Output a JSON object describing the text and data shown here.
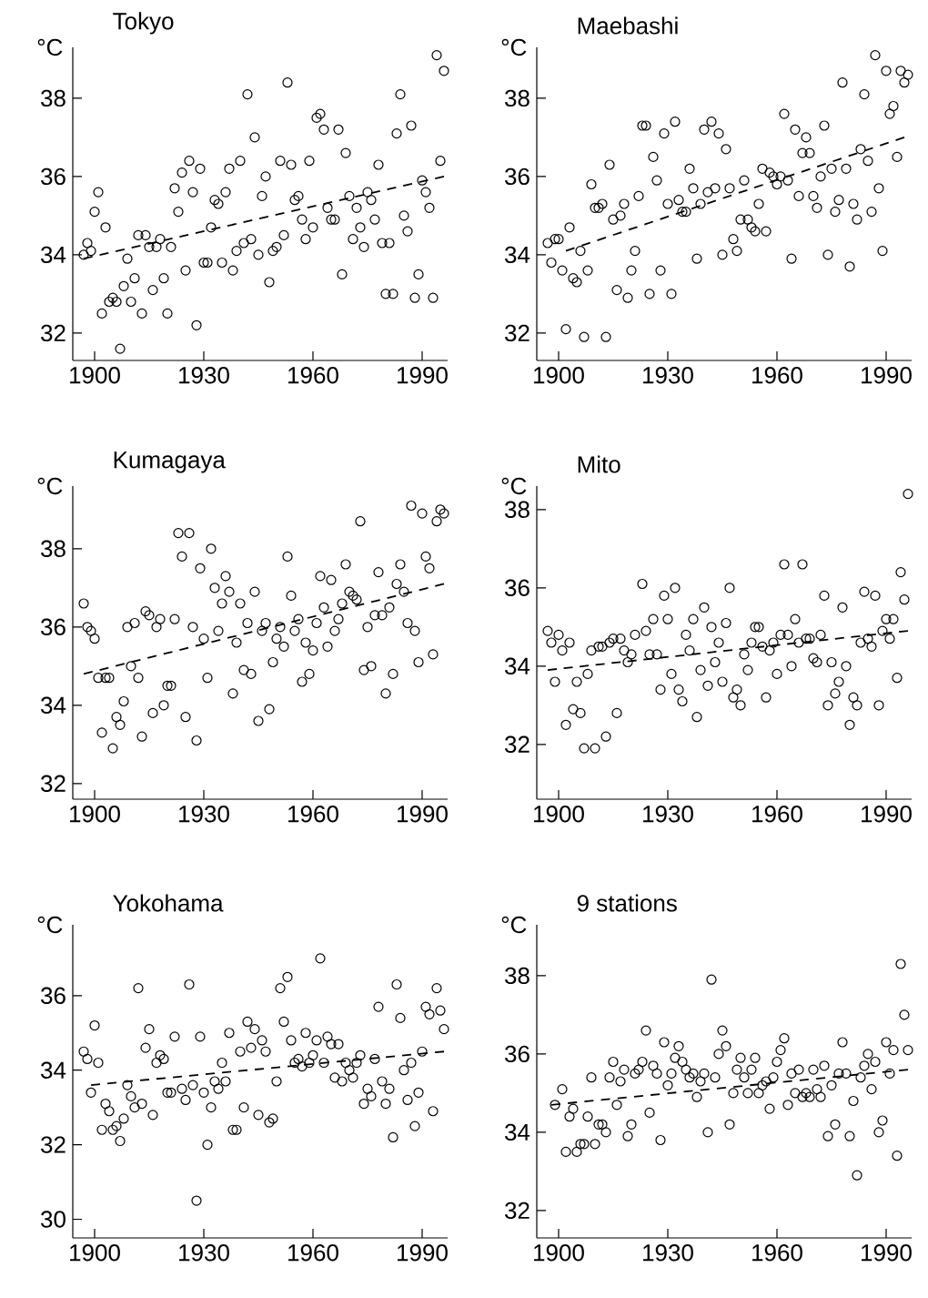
{
  "chart_data": [
    {
      "type": "scatter",
      "title": "Tokyo",
      "ylabel": "°C",
      "xlim": [
        1894,
        1997
      ],
      "ylim": [
        31.3,
        39.3
      ],
      "xticks": [
        1900,
        1930,
        1960,
        1990
      ],
      "yticks": [
        32,
        34,
        36,
        38
      ],
      "series": [
        {
          "type": "scatter",
          "color": "#000000",
          "marker": "circle",
          "x": [
            1897,
            1898,
            1899,
            1900,
            1901,
            1902,
            1903,
            1904,
            1905,
            1906,
            1907,
            1908,
            1909,
            1910,
            1911,
            1912,
            1913,
            1914,
            1915,
            1916,
            1917,
            1918,
            1919,
            1920,
            1921,
            1922,
            1923,
            1924,
            1925,
            1926,
            1927,
            1928,
            1929,
            1930,
            1931,
            1932,
            1933,
            1934,
            1935,
            1936,
            1937,
            1938,
            1939,
            1940,
            1941,
            1942,
            1943,
            1944,
            1945,
            1946,
            1947,
            1948,
            1949,
            1950,
            1951,
            1952,
            1953,
            1954,
            1955,
            1956,
            1957,
            1958,
            1959,
            1960,
            1961,
            1962,
            1963,
            1964,
            1965,
            1966,
            1967,
            1968,
            1969,
            1970,
            1971,
            1972,
            1973,
            1974,
            1975,
            1976,
            1977,
            1978,
            1979,
            1980,
            1981,
            1982,
            1983,
            1984,
            1985,
            1986,
            1987,
            1988,
            1989,
            1990,
            1991,
            1992,
            1993,
            1994,
            1995,
            1996
          ],
          "values": [
            34.0,
            34.3,
            34.1,
            35.1,
            35.6,
            32.5,
            34.7,
            32.8,
            32.9,
            32.8,
            31.6,
            33.2,
            33.9,
            32.8,
            33.4,
            34.5,
            32.5,
            34.5,
            34.2,
            33.1,
            34.2,
            34.4,
            33.4,
            32.5,
            34.2,
            35.7,
            35.1,
            36.1,
            33.6,
            36.4,
            35.6,
            32.2,
            36.2,
            33.8,
            33.8,
            34.7,
            35.4,
            35.3,
            33.8,
            35.6,
            36.2,
            33.6,
            34.1,
            36.4,
            34.3,
            38.1,
            34.4,
            37.0,
            34.0,
            35.5,
            36.0,
            33.3,
            34.1,
            34.2,
            36.4,
            34.5,
            38.4,
            36.3,
            35.4,
            35.5,
            34.9,
            34.4,
            36.4,
            34.7,
            37.5,
            37.6,
            37.2,
            35.2,
            34.9,
            34.9,
            37.2,
            33.5,
            36.6,
            35.5,
            34.4,
            35.2,
            34.7,
            34.2,
            35.6,
            35.4,
            34.9,
            36.3,
            34.3,
            33.0,
            34.3,
            33.0,
            37.1,
            38.1,
            35.0,
            34.6,
            37.3,
            32.9,
            33.5,
            35.9,
            35.6,
            35.2,
            32.9,
            39.1,
            36.4,
            38.7
          ]
        },
        {
          "type": "line",
          "color": "#000000",
          "line_style": "dashed",
          "x": [
            1897,
            1996
          ],
          "values": [
            33.9,
            36.0
          ]
        }
      ]
    },
    {
      "type": "scatter",
      "title": "Maebashi",
      "ylabel": "°C",
      "xlim": [
        1894,
        1997
      ],
      "ylim": [
        31.3,
        39.3
      ],
      "xticks": [
        1900,
        1930,
        1960,
        1990
      ],
      "yticks": [
        32,
        34,
        36,
        38
      ],
      "series": [
        {
          "type": "scatter",
          "color": "#000000",
          "marker": "circle",
          "x": [
            1897,
            1898,
            1899,
            1900,
            1901,
            1902,
            1903,
            1904,
            1905,
            1906,
            1907,
            1908,
            1909,
            1910,
            1911,
            1912,
            1913,
            1914,
            1915,
            1916,
            1917,
            1918,
            1919,
            1920,
            1921,
            1922,
            1923,
            1924,
            1925,
            1926,
            1927,
            1928,
            1929,
            1930,
            1931,
            1932,
            1933,
            1934,
            1935,
            1936,
            1937,
            1938,
            1939,
            1940,
            1941,
            1942,
            1943,
            1944,
            1945,
            1946,
            1947,
            1948,
            1949,
            1950,
            1951,
            1952,
            1953,
            1954,
            1955,
            1956,
            1957,
            1958,
            1959,
            1960,
            1961,
            1962,
            1963,
            1964,
            1965,
            1966,
            1967,
            1968,
            1969,
            1970,
            1971,
            1972,
            1973,
            1974,
            1975,
            1976,
            1977,
            1978,
            1979,
            1980,
            1981,
            1982,
            1983,
            1984,
            1985,
            1986,
            1987,
            1988,
            1989,
            1990,
            1991,
            1992,
            1993,
            1994,
            1995,
            1996
          ],
          "values": [
            34.3,
            33.8,
            34.4,
            34.4,
            33.6,
            32.1,
            34.7,
            33.4,
            33.3,
            34.1,
            31.9,
            33.6,
            35.8,
            35.2,
            35.2,
            35.3,
            31.9,
            36.3,
            34.9,
            33.1,
            35.0,
            35.3,
            32.9,
            33.6,
            34.1,
            35.5,
            37.3,
            37.3,
            33.0,
            36.5,
            35.9,
            33.6,
            37.1,
            35.3,
            33.0,
            37.4,
            35.4,
            35.1,
            35.1,
            36.2,
            35.7,
            33.9,
            35.3,
            37.2,
            35.6,
            37.4,
            35.7,
            37.1,
            34.0,
            36.7,
            35.7,
            34.4,
            34.1,
            34.9,
            35.9,
            34.9,
            34.7,
            34.6,
            35.3,
            36.2,
            34.6,
            36.1,
            36.0,
            35.8,
            36.0,
            37.6,
            35.9,
            33.9,
            37.2,
            35.5,
            36.6,
            37.0,
            36.6,
            35.5,
            35.2,
            36.0,
            37.3,
            34.0,
            36.2,
            35.1,
            35.4,
            38.4,
            36.2,
            33.7,
            35.3,
            34.9,
            36.7,
            38.1,
            36.4,
            35.1,
            39.1,
            35.7,
            34.1,
            38.7,
            37.6,
            37.8,
            36.5,
            38.7,
            38.4,
            38.6
          ]
        },
        {
          "type": "line",
          "color": "#000000",
          "line_style": "dashed",
          "x": [
            1902,
            1995
          ],
          "values": [
            34.1,
            37.0
          ]
        }
      ]
    },
    {
      "type": "scatter",
      "title": "Kumagaya",
      "ylabel": "°C",
      "xlim": [
        1894,
        1997
      ],
      "ylim": [
        31.6,
        39.6
      ],
      "xticks": [
        1900,
        1930,
        1960,
        1990
      ],
      "yticks": [
        32,
        34,
        36,
        38
      ],
      "series": [
        {
          "type": "scatter",
          "color": "#000000",
          "marker": "circle",
          "x": [
            1897,
            1898,
            1899,
            1900,
            1901,
            1902,
            1903,
            1904,
            1905,
            1906,
            1907,
            1908,
            1909,
            1910,
            1911,
            1912,
            1913,
            1914,
            1915,
            1916,
            1917,
            1918,
            1919,
            1920,
            1921,
            1922,
            1923,
            1924,
            1925,
            1926,
            1927,
            1928,
            1929,
            1930,
            1931,
            1932,
            1933,
            1934,
            1935,
            1936,
            1937,
            1938,
            1939,
            1940,
            1941,
            1942,
            1943,
            1944,
            1945,
            1946,
            1947,
            1948,
            1949,
            1950,
            1951,
            1952,
            1953,
            1954,
            1955,
            1956,
            1957,
            1958,
            1959,
            1960,
            1961,
            1962,
            1963,
            1964,
            1965,
            1966,
            1967,
            1968,
            1969,
            1970,
            1971,
            1972,
            1973,
            1974,
            1975,
            1976,
            1977,
            1978,
            1979,
            1980,
            1981,
            1982,
            1983,
            1984,
            1985,
            1986,
            1987,
            1988,
            1989,
            1990,
            1991,
            1992,
            1993,
            1994,
            1995,
            1996
          ],
          "values": [
            36.6,
            36.0,
            35.9,
            35.7,
            34.7,
            33.3,
            34.7,
            34.7,
            32.9,
            33.7,
            33.5,
            34.1,
            36.0,
            35.0,
            36.1,
            34.7,
            33.2,
            36.4,
            36.3,
            33.8,
            36.0,
            36.2,
            34.0,
            34.5,
            34.5,
            36.2,
            38.4,
            37.8,
            33.7,
            38.4,
            36.0,
            33.1,
            37.5,
            35.7,
            34.7,
            38.0,
            37.0,
            35.9,
            36.6,
            37.3,
            36.9,
            34.3,
            35.6,
            36.6,
            34.9,
            36.1,
            34.8,
            36.9,
            33.6,
            35.9,
            36.1,
            33.9,
            35.1,
            35.7,
            36.0,
            35.5,
            37.8,
            36.8,
            35.9,
            36.2,
            34.6,
            35.6,
            34.8,
            35.4,
            36.1,
            37.3,
            36.5,
            35.5,
            37.2,
            35.9,
            36.2,
            36.6,
            37.6,
            36.9,
            36.8,
            36.7,
            38.7,
            34.9,
            36.0,
            35.0,
            36.3,
            37.4,
            36.3,
            34.3,
            36.5,
            34.8,
            37.1,
            37.6,
            36.9,
            36.1,
            39.1,
            35.9,
            35.1,
            38.9,
            37.8,
            37.5,
            35.3,
            38.7,
            39.0,
            38.9
          ]
        },
        {
          "type": "line",
          "color": "#000000",
          "line_style": "dashed",
          "x": [
            1897,
            1996
          ],
          "values": [
            34.8,
            37.1
          ]
        }
      ]
    },
    {
      "type": "scatter",
      "title": "Mito",
      "ylabel": "°C",
      "xlim": [
        1894,
        1997
      ],
      "ylim": [
        30.6,
        38.6
      ],
      "xticks": [
        1900,
        1930,
        1960,
        1990
      ],
      "yticks": [
        32,
        34,
        36,
        38
      ],
      "series": [
        {
          "type": "scatter",
          "color": "#000000",
          "marker": "circle",
          "x": [
            1897,
            1898,
            1899,
            1900,
            1901,
            1902,
            1903,
            1904,
            1905,
            1906,
            1907,
            1908,
            1909,
            1910,
            1911,
            1912,
            1913,
            1914,
            1915,
            1916,
            1917,
            1918,
            1919,
            1920,
            1921,
            1923,
            1924,
            1925,
            1926,
            1927,
            1928,
            1929,
            1930,
            1931,
            1932,
            1933,
            1934,
            1935,
            1936,
            1937,
            1938,
            1939,
            1940,
            1941,
            1942,
            1943,
            1944,
            1945,
            1946,
            1947,
            1948,
            1949,
            1950,
            1951,
            1952,
            1953,
            1954,
            1955,
            1956,
            1957,
            1958,
            1959,
            1960,
            1961,
            1962,
            1963,
            1964,
            1965,
            1966,
            1967,
            1968,
            1969,
            1970,
            1971,
            1972,
            1973,
            1974,
            1975,
            1976,
            1977,
            1978,
            1979,
            1980,
            1981,
            1982,
            1983,
            1984,
            1985,
            1986,
            1987,
            1988,
            1989,
            1990,
            1991,
            1992,
            1993,
            1994,
            1995,
            1996
          ],
          "values": [
            34.9,
            34.6,
            33.6,
            34.8,
            34.4,
            32.5,
            34.6,
            32.9,
            33.6,
            32.8,
            31.9,
            33.8,
            34.4,
            31.9,
            34.5,
            34.5,
            32.2,
            34.6,
            34.7,
            32.8,
            34.7,
            34.4,
            34.1,
            34.3,
            34.8,
            36.1,
            34.9,
            34.3,
            35.2,
            34.3,
            33.4,
            35.8,
            35.2,
            33.8,
            36.0,
            33.4,
            33.1,
            34.8,
            34.4,
            35.2,
            32.7,
            33.9,
            35.5,
            33.5,
            35.0,
            34.1,
            34.6,
            33.6,
            35.1,
            36.0,
            33.2,
            33.4,
            33.0,
            34.3,
            33.9,
            34.6,
            35.0,
            35.0,
            34.5,
            33.2,
            34.4,
            34.6,
            33.8,
            34.8,
            36.6,
            34.8,
            34.0,
            35.2,
            34.6,
            36.6,
            34.7,
            34.7,
            34.2,
            34.1,
            34.8,
            35.8,
            33.0,
            34.1,
            33.3,
            33.6,
            35.5,
            34.0,
            32.5,
            33.2,
            33.0,
            34.6,
            35.9,
            34.7,
            34.5,
            35.8,
            33.0,
            34.9,
            35.2,
            34.7,
            35.2,
            33.7,
            36.4,
            35.7,
            38.4
          ]
        },
        {
          "type": "line",
          "color": "#000000",
          "line_style": "dashed",
          "x": [
            1897,
            1996
          ],
          "values": [
            33.9,
            34.9
          ]
        }
      ]
    },
    {
      "type": "scatter",
      "title": "Yokohama",
      "ylabel": "°C",
      "xlim": [
        1894,
        1997
      ],
      "ylim": [
        29.5,
        37.9
      ],
      "xticks": [
        1900,
        1930,
        1960,
        1990
      ],
      "yticks": [
        30,
        32,
        34,
        36
      ],
      "series": [
        {
          "type": "scatter",
          "color": "#000000",
          "marker": "circle",
          "x": [
            1897,
            1898,
            1899,
            1900,
            1901,
            1902,
            1903,
            1904,
            1905,
            1906,
            1907,
            1908,
            1909,
            1910,
            1911,
            1912,
            1913,
            1914,
            1915,
            1916,
            1917,
            1918,
            1919,
            1920,
            1921,
            1922,
            1924,
            1925,
            1926,
            1927,
            1928,
            1929,
            1930,
            1931,
            1932,
            1933,
            1934,
            1935,
            1936,
            1937,
            1938,
            1939,
            1940,
            1941,
            1942,
            1943,
            1944,
            1945,
            1946,
            1947,
            1948,
            1949,
            1950,
            1951,
            1952,
            1953,
            1954,
            1955,
            1956,
            1957,
            1958,
            1959,
            1960,
            1961,
            1962,
            1963,
            1964,
            1965,
            1966,
            1967,
            1968,
            1969,
            1970,
            1971,
            1972,
            1973,
            1974,
            1975,
            1976,
            1977,
            1978,
            1979,
            1980,
            1981,
            1982,
            1983,
            1984,
            1985,
            1986,
            1987,
            1988,
            1989,
            1990,
            1991,
            1992,
            1993,
            1994,
            1995,
            1996
          ],
          "values": [
            34.5,
            34.3,
            33.4,
            35.2,
            34.2,
            32.4,
            33.1,
            32.9,
            32.4,
            32.5,
            32.1,
            32.7,
            33.6,
            33.3,
            33.0,
            36.2,
            33.1,
            34.6,
            35.1,
            32.8,
            34.2,
            34.4,
            34.3,
            33.4,
            33.4,
            34.9,
            33.5,
            33.2,
            36.3,
            33.6,
            30.5,
            34.9,
            33.4,
            32.0,
            33.0,
            33.7,
            33.5,
            34.2,
            33.7,
            35.0,
            32.4,
            32.4,
            34.5,
            33.0,
            35.3,
            34.6,
            35.1,
            32.8,
            34.8,
            34.5,
            32.6,
            32.7,
            33.7,
            36.2,
            35.3,
            36.5,
            34.8,
            34.2,
            34.3,
            34.1,
            35.0,
            34.2,
            34.4,
            34.8,
            37.0,
            34.2,
            34.9,
            34.7,
            33.8,
            34.7,
            33.7,
            34.2,
            34.0,
            33.8,
            34.2,
            34.4,
            33.1,
            33.5,
            33.3,
            34.3,
            35.7,
            33.7,
            33.1,
            33.5,
            32.2,
            36.3,
            35.4,
            34.0,
            33.2,
            34.2,
            32.5,
            33.4,
            34.5,
            35.7,
            35.5,
            32.9,
            36.2,
            35.6,
            35.1
          ]
        },
        {
          "type": "line",
          "color": "#000000",
          "line_style": "dashed",
          "x": [
            1899,
            1996
          ],
          "values": [
            33.6,
            34.5
          ]
        }
      ]
    },
    {
      "type": "scatter",
      "title": "9 stations",
      "ylabel": "°C",
      "xlim": [
        1894,
        1997
      ],
      "ylim": [
        31.3,
        39.3
      ],
      "xticks": [
        1900,
        1930,
        1960,
        1990
      ],
      "yticks": [
        32,
        34,
        36,
        38
      ],
      "series": [
        {
          "type": "scatter",
          "color": "#000000",
          "marker": "circle",
          "x": [
            1899,
            1901,
            1902,
            1903,
            1904,
            1905,
            1906,
            1907,
            1908,
            1909,
            1910,
            1911,
            1912,
            1913,
            1914,
            1915,
            1916,
            1917,
            1918,
            1919,
            1920,
            1921,
            1922,
            1923,
            1924,
            1925,
            1926,
            1927,
            1928,
            1929,
            1930,
            1931,
            1932,
            1933,
            1934,
            1935,
            1936,
            1937,
            1938,
            1939,
            1940,
            1941,
            1942,
            1943,
            1944,
            1945,
            1946,
            1947,
            1948,
            1949,
            1950,
            1951,
            1952,
            1953,
            1954,
            1955,
            1956,
            1957,
            1958,
            1959,
            1960,
            1961,
            1962,
            1963,
            1964,
            1965,
            1966,
            1967,
            1968,
            1969,
            1970,
            1971,
            1972,
            1973,
            1974,
            1975,
            1976,
            1977,
            1978,
            1979,
            1980,
            1981,
            1982,
            1983,
            1984,
            1985,
            1986,
            1987,
            1988,
            1989,
            1990,
            1991,
            1992,
            1993,
            1994,
            1995,
            1996
          ],
          "values": [
            34.7,
            35.1,
            33.5,
            34.4,
            34.6,
            33.5,
            33.7,
            33.7,
            34.4,
            35.4,
            33.7,
            34.2,
            34.2,
            34.0,
            35.4,
            35.8,
            34.7,
            35.3,
            35.6,
            33.9,
            34.2,
            35.5,
            35.6,
            35.8,
            36.6,
            34.5,
            35.7,
            35.5,
            33.8,
            36.3,
            35.2,
            35.5,
            35.9,
            36.2,
            35.8,
            35.6,
            35.4,
            35.5,
            34.9,
            35.3,
            35.5,
            34.0,
            37.9,
            35.4,
            36.0,
            36.6,
            36.2,
            34.2,
            35.0,
            35.6,
            35.9,
            35.4,
            35.0,
            35.6,
            35.9,
            35.0,
            35.2,
            35.3,
            34.6,
            35.4,
            35.8,
            36.1,
            36.4,
            34.7,
            35.5,
            35.0,
            35.6,
            34.9,
            35.0,
            34.9,
            35.6,
            35.1,
            34.9,
            35.7,
            33.9,
            35.2,
            34.2,
            35.5,
            36.3,
            35.5,
            33.9,
            34.8,
            32.9,
            35.4,
            35.7,
            36.0,
            35.1,
            35.8,
            34.0,
            34.3,
            36.3,
            35.5,
            36.1,
            33.4,
            38.3,
            37.0,
            36.1
          ]
        },
        {
          "type": "line",
          "color": "#000000",
          "line_style": "dashed",
          "x": [
            1898,
            1996
          ],
          "values": [
            34.7,
            35.6
          ]
        }
      ]
    }
  ]
}
